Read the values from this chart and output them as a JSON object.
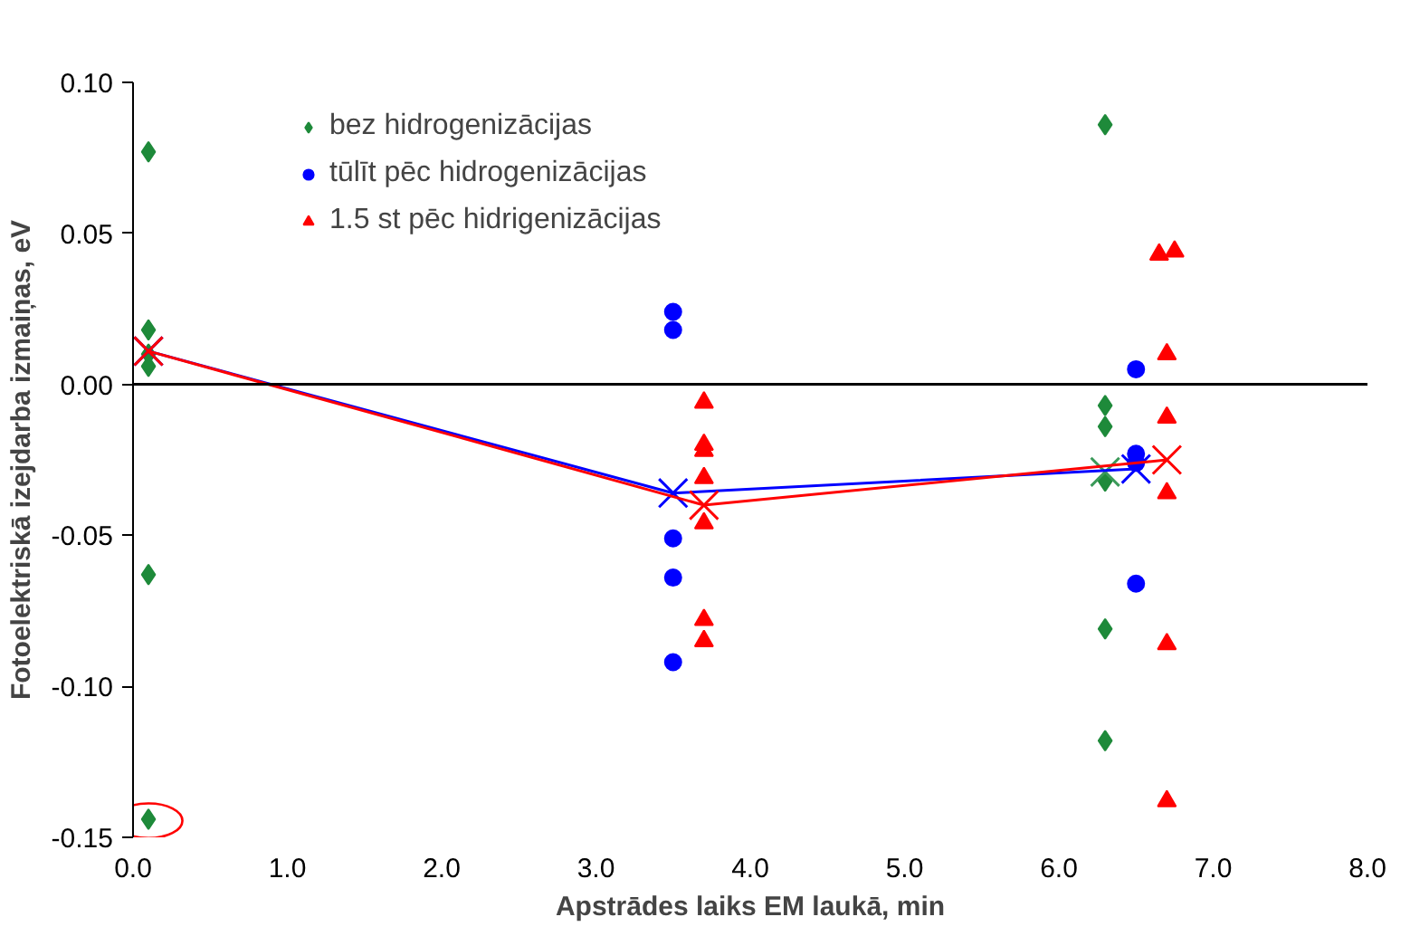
{
  "chart_data": {
    "type": "scatter",
    "xlabel": "Apstrādes laiks EM laukā, min",
    "ylabel": "Fotoelektriskā izejdarba izmaiņas, eV",
    "xlim": [
      0,
      8
    ],
    "ylim": [
      -0.15,
      0.1
    ],
    "xticks": [
      {
        "value": 0,
        "label": "0.0"
      },
      {
        "value": 1,
        "label": "1.0"
      },
      {
        "value": 2,
        "label": "2.0"
      },
      {
        "value": 3,
        "label": "3.0"
      },
      {
        "value": 4,
        "label": "4.0"
      },
      {
        "value": 5,
        "label": "5.0"
      },
      {
        "value": 6,
        "label": "6.0"
      },
      {
        "value": 7,
        "label": "7.0"
      },
      {
        "value": 8,
        "label": "8.0"
      }
    ],
    "yticks": [
      {
        "value": -0.15,
        "label": "-0.15"
      },
      {
        "value": -0.1,
        "label": "-0.10"
      },
      {
        "value": -0.05,
        "label": "-0.05"
      },
      {
        "value": 0,
        "label": "0.00"
      },
      {
        "value": 0.05,
        "label": "0.05"
      },
      {
        "value": 0.1,
        "label": "0.10"
      }
    ],
    "grid": false,
    "legend": "top left",
    "ref_lines": [
      {
        "axis": "y",
        "value": 0,
        "color": "#000000"
      }
    ],
    "series": [
      {
        "name": "bez hidrogenizācijas",
        "color": "#1e8a3a",
        "marker": "diamond",
        "x": [
          0.1,
          0.1,
          0.1,
          0.1,
          0.1,
          0.1,
          6.3,
          6.3,
          6.3,
          6.3,
          6.3,
          6.3
        ],
        "values": [
          0.077,
          0.018,
          0.01,
          0.006,
          -0.063,
          -0.144,
          0.086,
          -0.007,
          -0.014,
          -0.032,
          -0.081,
          -0.118
        ]
      },
      {
        "name": "tūlīt pēc hidrogenizācijas",
        "color": "#0000ff",
        "marker": "circle",
        "x": [
          3.5,
          3.5,
          3.5,
          3.5,
          3.5,
          6.5,
          6.5,
          6.5,
          6.5
        ],
        "values": [
          0.024,
          0.018,
          -0.051,
          -0.064,
          -0.092,
          0.005,
          -0.023,
          -0.026,
          -0.066
        ]
      },
      {
        "name": "1.5 st pēc hidrigenizācijas",
        "color": "#ff0000",
        "marker": "triangle",
        "x": [
          3.7,
          3.7,
          3.7,
          3.7,
          3.7,
          3.7,
          3.7,
          6.65,
          6.75,
          6.7,
          6.7,
          6.7,
          6.7,
          6.7
        ],
        "values": [
          -0.006,
          -0.02,
          -0.022,
          -0.031,
          -0.046,
          -0.078,
          -0.085,
          0.043,
          0.044,
          0.01,
          -0.011,
          -0.036,
          -0.086,
          -0.138
        ]
      },
      {
        "type": "scatter",
        "color": "#3c9a5a",
        "marker": "cross",
        "x": [
          6.3
        ],
        "values": [
          -0.029
        ]
      },
      {
        "type": "line",
        "color": "#0000ff",
        "marker": "cross",
        "x": [
          0.1,
          3.5,
          6.5
        ],
        "values": [
          0.011,
          -0.036,
          -0.028
        ]
      },
      {
        "type": "line",
        "color": "#ff0000",
        "marker": "cross",
        "x": [
          0.1,
          3.7,
          6.7
        ],
        "values": [
          0.011,
          -0.04,
          -0.025
        ]
      }
    ]
  }
}
